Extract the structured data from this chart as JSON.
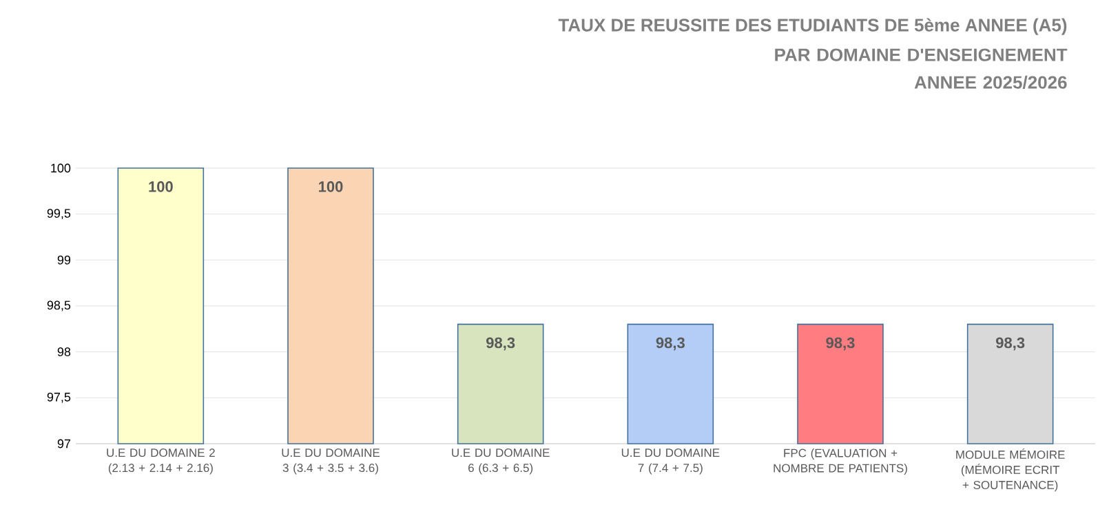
{
  "chart_data": {
    "type": "bar",
    "title": "TAUX DE REUSSITE DES ETUDIANTS DE 5ème ANNEE (A5)",
    "subtitle": "PAR DOMAINE D'ENSEIGNEMENT ANNEE 2025/2026",
    "categories": [
      "U.E DU DOMAINE 2 (2.13 + 2.14 + 2.16)",
      "U.E DU DOMAINE 3 (3.4 + 3.5 + 3.6)",
      "U.E DU DOMAINE 6 (6.3 + 6.5)",
      "U.E DU DOMAINE 7 (7.4 + 7.5)",
      "FPC (EVALUATION + NOMBRE DE PATIENTS)",
      "MODULE MÉMOIRE (MÉMOIRE ECRIT + SOUTENANCE)"
    ],
    "values": [
      100,
      100,
      98.3,
      98.3,
      98.3,
      98.3
    ],
    "value_labels": [
      "100",
      "100",
      "98,3",
      "98,3",
      "98,3",
      "98,3"
    ],
    "colors": [
      "#ffffcc",
      "#fbd4b4",
      "#d7e4bd",
      "#b3cdf6",
      "#ff7c80",
      "#d9d9d9"
    ],
    "ylim": [
      97,
      100
    ],
    "yticks": [
      97,
      {
        "value": 97.5,
        "label": "97,5"
      },
      98,
      {
        "value": 98.5,
        "label": "98,5"
      },
      99,
      {
        "value": 99.5,
        "label": "99,5"
      },
      100
    ],
    "grid": "y"
  }
}
